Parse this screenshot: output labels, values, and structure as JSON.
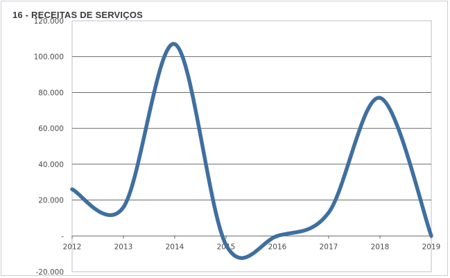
{
  "chart_data": {
    "type": "line",
    "title": "16 - RECEITAS DE SERVIÇOS",
    "xlabel": "",
    "ylabel": "",
    "x": [
      "2012",
      "2013",
      "2014",
      "2015",
      "2016",
      "2017",
      "2018",
      "2019"
    ],
    "series": [
      {
        "values": [
          26000,
          16000,
          107000,
          -5000,
          0,
          13000,
          77000,
          0
        ]
      }
    ],
    "ylim": [
      -20000,
      120000
    ],
    "y_ticks": [
      -20000,
      0,
      20000,
      40000,
      60000,
      80000,
      100000,
      120000
    ],
    "y_tick_labels": [
      "-20.000",
      "-",
      "20.000",
      "40.000",
      "60.000",
      "80.000",
      "100.000",
      "120.000"
    ],
    "grid": true,
    "smooth": true,
    "line_color": "#3f6fa0",
    "legend": "none"
  }
}
